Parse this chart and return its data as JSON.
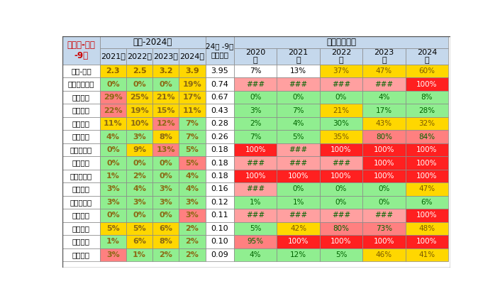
{
  "rows": [
    {
      "name": "保险-万台",
      "share": [
        "2.3",
        "2.5",
        "3.2",
        "3.9"
      ],
      "ins": "3.95",
      "nev": [
        "7%",
        "13%",
        "37%",
        "47%",
        "60%"
      ],
      "sc": [
        "#FFD700",
        "#FFD700",
        "#FFD700",
        "#FFD700"
      ],
      "nc": [
        "#FFFFFF",
        "#FFFFFF",
        "#FFD700",
        "#FFD700",
        "#FFD700"
      ],
      "bold_share": true
    },
    {
      "name": "上汽通用五菱",
      "share": [
        "0%",
        "0%",
        "0%",
        "19%"
      ],
      "ins": "0.74",
      "nev": [
        "###",
        "###",
        "###",
        "###",
        "100%"
      ],
      "sc": [
        "#90EE90",
        "#90EE90",
        "#90EE90",
        "#FFD700"
      ],
      "nc": [
        "#FFA0A0",
        "#FFA0A0",
        "#FFA0A0",
        "#FFA0A0",
        "#FF2020"
      ]
    },
    {
      "name": "江铃汽车",
      "share": [
        "29%",
        "25%",
        "21%",
        "17%"
      ],
      "ins": "0.67",
      "nev": [
        "0%",
        "0%",
        "0%",
        "4%",
        "8%"
      ],
      "sc": [
        "#FF8080",
        "#FFD700",
        "#FFD700",
        "#FFD700"
      ],
      "nc": [
        "#90EE90",
        "#90EE90",
        "#90EE90",
        "#90EE90",
        "#90EE90"
      ]
    },
    {
      "name": "上汽大通",
      "share": [
        "22%",
        "19%",
        "15%",
        "11%"
      ],
      "ins": "0.43",
      "nev": [
        "3%",
        "7%",
        "21%",
        "17%",
        "28%"
      ],
      "sc": [
        "#FF8080",
        "#FFD700",
        "#FFD700",
        "#FFD700"
      ],
      "nc": [
        "#90EE90",
        "#90EE90",
        "#FFD700",
        "#90EE90",
        "#90EE90"
      ]
    },
    {
      "name": "北汽福田",
      "share": [
        "11%",
        "10%",
        "12%",
        "7%"
      ],
      "ins": "0.28",
      "nev": [
        "2%",
        "4%",
        "30%",
        "43%",
        "32%"
      ],
      "sc": [
        "#FFD700",
        "#FFD700",
        "#FF8080",
        "#90EE90"
      ],
      "nc": [
        "#90EE90",
        "#90EE90",
        "#90EE90",
        "#FFD700",
        "#FFD700"
      ]
    },
    {
      "name": "长安汽车",
      "share": [
        "4%",
        "3%",
        "8%",
        "7%"
      ],
      "ins": "0.26",
      "nev": [
        "7%",
        "5%",
        "35%",
        "80%",
        "84%"
      ],
      "sc": [
        "#90EE90",
        "#90EE90",
        "#FFD700",
        "#90EE90"
      ],
      "nc": [
        "#90EE90",
        "#90EE90",
        "#FFD700",
        "#FF8080",
        "#FF8080"
      ]
    },
    {
      "name": "吉利商用车",
      "share": [
        "0%",
        "9%",
        "13%",
        "5%"
      ],
      "ins": "0.18",
      "nev": [
        "100%",
        "###",
        "100%",
        "100%",
        "100%"
      ],
      "sc": [
        "#90EE90",
        "#FFD700",
        "#FF8080",
        "#90EE90"
      ],
      "nc": [
        "#FF2020",
        "#FFA0A0",
        "#FF2020",
        "#FF2020",
        "#FF2020"
      ]
    },
    {
      "name": "重庆瑞驰",
      "share": [
        "0%",
        "0%",
        "0%",
        "5%"
      ],
      "ins": "0.18",
      "nev": [
        "###",
        "###",
        "###",
        "100%",
        "100%"
      ],
      "sc": [
        "#90EE90",
        "#90EE90",
        "#90EE90",
        "#FF8080"
      ],
      "nc": [
        "#FFA0A0",
        "#FFA0A0",
        "#FFA0A0",
        "#FF2020",
        "#FF2020"
      ]
    },
    {
      "name": "山西新能源",
      "share": [
        "1%",
        "2%",
        "0%",
        "4%"
      ],
      "ins": "0.18",
      "nev": [
        "100%",
        "100%",
        "100%",
        "100%",
        "100%"
      ],
      "sc": [
        "#90EE90",
        "#90EE90",
        "#90EE90",
        "#90EE90"
      ],
      "nc": [
        "#FF2020",
        "#FF2020",
        "#FF2020",
        "#FF2020",
        "#FF2020"
      ]
    },
    {
      "name": "鑫源汽车",
      "share": [
        "3%",
        "4%",
        "3%",
        "4%"
      ],
      "ins": "0.16",
      "nev": [
        "###",
        "0%",
        "0%",
        "0%",
        "47%"
      ],
      "sc": [
        "#90EE90",
        "#90EE90",
        "#90EE90",
        "#90EE90"
      ],
      "nc": [
        "#FFA0A0",
        "#90EE90",
        "#90EE90",
        "#90EE90",
        "#FFD700"
      ]
    },
    {
      "name": "上汽依维柯",
      "share": [
        "3%",
        "3%",
        "3%",
        "3%"
      ],
      "ins": "0.12",
      "nev": [
        "1%",
        "1%",
        "0%",
        "0%",
        "6%"
      ],
      "sc": [
        "#90EE90",
        "#90EE90",
        "#90EE90",
        "#90EE90"
      ],
      "nc": [
        "#90EE90",
        "#90EE90",
        "#90EE90",
        "#90EE90",
        "#90EE90"
      ]
    },
    {
      "name": "贵州长江",
      "share": [
        "0%",
        "0%",
        "0%",
        "3%"
      ],
      "ins": "0.11",
      "nev": [
        "###",
        "###",
        "###",
        "###",
        "100%"
      ],
      "sc": [
        "#90EE90",
        "#90EE90",
        "#90EE90",
        "#FF8080"
      ],
      "nc": [
        "#FFA0A0",
        "#FFA0A0",
        "#FFA0A0",
        "#FFA0A0",
        "#FF2020"
      ]
    },
    {
      "name": "东风汽车",
      "share": [
        "5%",
        "5%",
        "6%",
        "2%"
      ],
      "ins": "0.10",
      "nev": [
        "5%",
        "42%",
        "80%",
        "73%",
        "48%"
      ],
      "sc": [
        "#FFD700",
        "#FFD700",
        "#FFD700",
        "#90EE90"
      ],
      "nc": [
        "#90EE90",
        "#FFD700",
        "#FF8080",
        "#FF8080",
        "#FFD700"
      ]
    },
    {
      "name": "奇瑞汽车",
      "share": [
        "1%",
        "6%",
        "8%",
        "2%"
      ],
      "ins": "0.10",
      "nev": [
        "95%",
        "100%",
        "100%",
        "100%",
        "100%"
      ],
      "sc": [
        "#90EE90",
        "#FFD700",
        "#FFD700",
        "#90EE90"
      ],
      "nc": [
        "#FF8080",
        "#FF2020",
        "#FF2020",
        "#FF2020",
        "#FF2020"
      ]
    },
    {
      "name": "江淮汽车",
      "share": [
        "3%",
        "1%",
        "2%",
        "2%"
      ],
      "ins": "0.09",
      "nev": [
        "4%",
        "12%",
        "5%",
        "46%",
        "41%"
      ],
      "sc": [
        "#FF8080",
        "#90EE90",
        "#90EE90",
        "#90EE90"
      ],
      "nc": [
        "#90EE90",
        "#90EE90",
        "#90EE90",
        "#FFD700",
        "#FFD700"
      ]
    }
  ],
  "header_bg": "#C5D8EC",
  "title_text_color": "#CC0000",
  "share_text_color": "#8B6914",
  "nev_text_dark": "#006400",
  "white_bg": "#FFFFFF"
}
